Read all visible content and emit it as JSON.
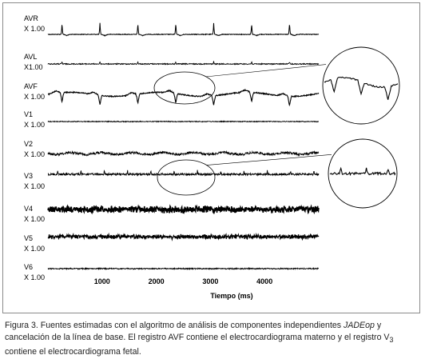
{
  "chart_data": {
    "type": "line",
    "xlabel": "Tiempo (ms)",
    "x_ticks": [
      1000,
      2000,
      3000,
      4000
    ],
    "xlim": [
      0,
      5000
    ],
    "series": [
      {
        "name": "AVR",
        "scale": "X 1.00"
      },
      {
        "name": "AVL",
        "scale": "X1.00"
      },
      {
        "name": "AVF",
        "scale": "X 1.00"
      },
      {
        "name": "V1",
        "scale": "X 1.00"
      },
      {
        "name": "V2",
        "scale": "X 1.00"
      },
      {
        "name": "V3",
        "scale": "X 1.00"
      },
      {
        "name": "V4",
        "scale": "X 1.00"
      },
      {
        "name": "V5",
        "scale": "X 1.00"
      },
      {
        "name": "V6",
        "scale": "X 1.00"
      }
    ]
  },
  "caption": {
    "figure_label": "Figura 3",
    "text_1": ". Fuentes estimadas con el algoritmo de análisis de componentes independientes ",
    "algorithm": "JADEop",
    "text_2": " y cancelación de la línea de base. El registro AVF contiene el electrocardiograma materno y el registro V",
    "subscript": "3",
    "text_3": " contiene el electrocardiograma fetal."
  },
  "colors": {
    "trace": "#000000",
    "frame": "#8a8a8a",
    "caption": "#222222"
  }
}
